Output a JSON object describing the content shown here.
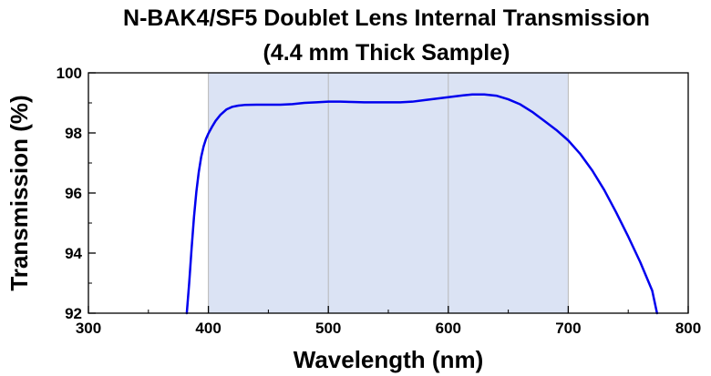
{
  "chart_data": {
    "type": "line",
    "title": "N-BAK4/SF5 Doublet Lens Internal Transmission",
    "subtitle": "(4.4 mm Thick Sample)",
    "xlabel": "Wavelength (nm)",
    "ylabel": "Transmission (%)",
    "xlim": [
      300,
      800
    ],
    "ylim": [
      92,
      100
    ],
    "x_ticks": [
      300,
      400,
      500,
      600,
      700,
      800
    ],
    "y_ticks": [
      92,
      94,
      96,
      98,
      100
    ],
    "grid": true,
    "shaded_region": {
      "x": [
        400,
        700
      ],
      "color": "#dbe3f4"
    },
    "series": [
      {
        "color": "#0000ee",
        "x": [
          382,
          384,
          386,
          388,
          390,
          392,
          394,
          396,
          398,
          400,
          403,
          406,
          410,
          415,
          420,
          425,
          430,
          440,
          450,
          460,
          470,
          480,
          490,
          500,
          510,
          520,
          530,
          540,
          550,
          560,
          570,
          580,
          590,
          600,
          610,
          620,
          630,
          640,
          650,
          660,
          670,
          680,
          690,
          700,
          710,
          720,
          730,
          740,
          750,
          760,
          770,
          774
        ],
        "y": [
          92.0,
          93.0,
          94.15,
          95.2,
          96.05,
          96.7,
          97.2,
          97.55,
          97.8,
          97.98,
          98.2,
          98.4,
          98.6,
          98.78,
          98.87,
          98.91,
          98.93,
          98.94,
          98.94,
          98.94,
          98.96,
          99.0,
          99.02,
          99.04,
          99.04,
          99.03,
          99.02,
          99.02,
          99.02,
          99.02,
          99.04,
          99.09,
          99.14,
          99.19,
          99.24,
          99.28,
          99.28,
          99.24,
          99.12,
          98.95,
          98.7,
          98.4,
          98.1,
          97.75,
          97.3,
          96.75,
          96.1,
          95.35,
          94.55,
          93.7,
          92.75,
          92.0
        ]
      }
    ]
  }
}
